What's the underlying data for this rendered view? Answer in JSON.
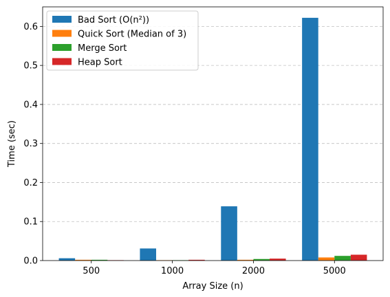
{
  "chart_data": {
    "type": "bar",
    "xlabel": "Array Size (n)",
    "ylabel": "Time (sec)",
    "categories": [
      "500",
      "1000",
      "2000",
      "5000"
    ],
    "ylim": [
      0,
      0.65
    ],
    "yticks": [
      "0.0",
      "0.1",
      "0.2",
      "0.3",
      "0.4",
      "0.5",
      "0.6"
    ],
    "grid": "y, dashed",
    "legend_position": "top-left",
    "series": [
      {
        "name": "Bad Sort (O(n²))",
        "color": "#1f77b4",
        "values": [
          0.006,
          0.031,
          0.139,
          0.622
        ]
      },
      {
        "name": "Quick Sort (Median of 3)",
        "color": "#ff7f0e",
        "values": [
          0.002,
          0.001,
          0.002,
          0.008
        ]
      },
      {
        "name": "Merge Sort",
        "color": "#2ca02c",
        "values": [
          0.002,
          0.001,
          0.004,
          0.012
        ]
      },
      {
        "name": "Heap Sort",
        "color": "#d62728",
        "values": [
          0.001,
          0.002,
          0.005,
          0.015
        ]
      }
    ]
  }
}
